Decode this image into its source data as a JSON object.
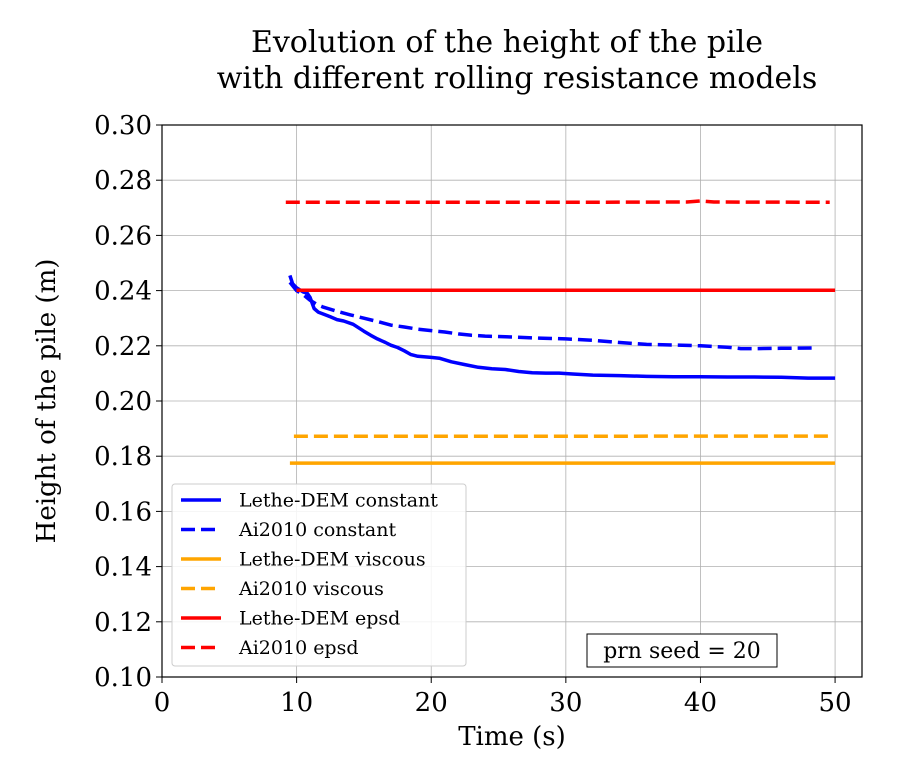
{
  "chart_data": {
    "type": "line",
    "title_line1": "Evolution of the height of the pile",
    "title_line2": "with different rolling resistance models",
    "xlabel": "Time (s)",
    "ylabel": "Height of the pile (m)",
    "xlim": [
      0,
      52
    ],
    "ylim": [
      0.1,
      0.3
    ],
    "xticks": [
      0,
      10,
      20,
      30,
      40,
      50
    ],
    "yticks": [
      0.1,
      0.12,
      0.14,
      0.16,
      0.18,
      0.2,
      0.22,
      0.24,
      0.26,
      0.28,
      0.3
    ],
    "ytick_labels": [
      "0.10",
      "0.12",
      "0.14",
      "0.16",
      "0.18",
      "0.20",
      "0.22",
      "0.24",
      "0.26",
      "0.28",
      "0.30"
    ],
    "grid": true,
    "legend_position": "lower-left",
    "annotation": "prn seed = 20",
    "series": [
      {
        "name": "Lethe-DEM constant",
        "color": "#0000ff",
        "dash": "solid",
        "x": [
          9.5,
          9.7,
          10.0,
          10.5,
          10.8,
          11.0,
          11.3,
          11.6,
          12.0,
          12.5,
          13.0,
          13.5,
          14.2,
          15.0,
          15.5,
          16.0,
          16.6,
          17.0,
          17.5,
          18.0,
          18.5,
          19.0,
          20.0,
          20.6,
          21.5,
          22.5,
          23.5,
          24.5,
          25.5,
          26.5,
          27.5,
          28.5,
          29.5,
          30.5,
          32.0,
          34.0,
          36.0,
          38.0,
          40.0,
          42.0,
          44.0,
          46.0,
          48.0,
          50.0
        ],
        "y": [
          0.2455,
          0.2425,
          0.241,
          0.2395,
          0.239,
          0.2375,
          0.2335,
          0.2322,
          0.2315,
          0.2305,
          0.2295,
          0.229,
          0.2278,
          0.2253,
          0.2238,
          0.2225,
          0.2212,
          0.2202,
          0.2194,
          0.2182,
          0.2168,
          0.2162,
          0.2158,
          0.2155,
          0.2142,
          0.2132,
          0.2122,
          0.2117,
          0.2114,
          0.2107,
          0.2102,
          0.2101,
          0.2101,
          0.2098,
          0.2094,
          0.2092,
          0.2089,
          0.2088,
          0.2088,
          0.2087,
          0.2087,
          0.2086,
          0.2083,
          0.2083
        ]
      },
      {
        "name": "Ai2010 constant",
        "color": "#0000ff",
        "dash": "dashed",
        "x": [
          9.5,
          10.0,
          10.5,
          11.0,
          11.5,
          12.0,
          13.0,
          14.0,
          15.0,
          16.0,
          17.0,
          18.0,
          19.0,
          20.0,
          21.0,
          22.0,
          23.0,
          24.0,
          26.0,
          28.0,
          30.0,
          32.0,
          34.0,
          36.0,
          38.0,
          40.0,
          42.0,
          43.0,
          44.0,
          46.0,
          48.3
        ],
        "y": [
          0.243,
          0.24,
          0.2385,
          0.2365,
          0.235,
          0.234,
          0.2325,
          0.2312,
          0.23,
          0.2288,
          0.2275,
          0.2268,
          0.226,
          0.2255,
          0.225,
          0.2243,
          0.2238,
          0.2235,
          0.2232,
          0.2228,
          0.2225,
          0.222,
          0.2212,
          0.2205,
          0.2203,
          0.22,
          0.2195,
          0.219,
          0.219,
          0.2191,
          0.2192
        ]
      },
      {
        "name": "Lethe-DEM viscous",
        "color": "#ffa500",
        "dash": "solid",
        "x": [
          9.5,
          50.0
        ],
        "y": [
          0.1775,
          0.1775
        ]
      },
      {
        "name": "Ai2010 viscous",
        "color": "#ffa500",
        "dash": "dashed",
        "x": [
          9.8,
          20.0,
          30.0,
          40.0,
          49.6
        ],
        "y": [
          0.1872,
          0.1872,
          0.1872,
          0.1873,
          0.1873
        ]
      },
      {
        "name": "Lethe-DEM epsd",
        "color": "#ff0000",
        "dash": "solid",
        "x": [
          10.0,
          50.0
        ],
        "y": [
          0.2401,
          0.2401
        ]
      },
      {
        "name": "Ai2010 epsd",
        "color": "#ff0000",
        "dash": "dashed",
        "x": [
          9.2,
          20.0,
          30.0,
          39.0,
          40.0,
          41.0,
          49.6
        ],
        "y": [
          0.272,
          0.272,
          0.272,
          0.2721,
          0.2725,
          0.2721,
          0.272
        ]
      }
    ]
  }
}
